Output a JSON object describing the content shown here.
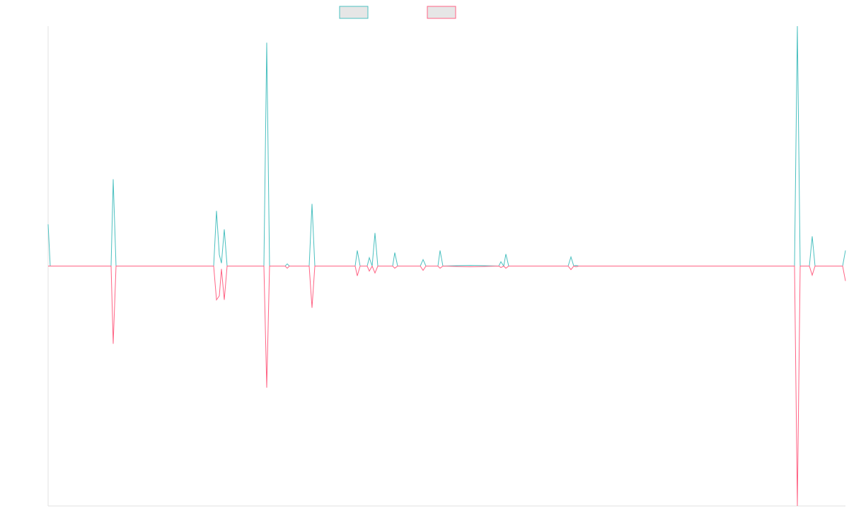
{
  "chart_data": {
    "type": "line",
    "x": [
      0,
      3,
      89,
      92,
      96,
      234,
      238,
      242,
      245,
      249,
      253,
      305,
      309,
      313,
      335,
      338,
      341,
      369,
      373,
      377,
      434,
      437,
      441,
      451,
      454,
      458,
      462,
      466,
      487,
      490,
      494,
      526,
      530,
      534,
      551,
      554,
      558,
      597,
      637,
      640,
      644,
      647,
      651,
      735,
      739,
      743,
      746,
      750,
      1055,
      1059,
      1063,
      1076,
      1080,
      1084,
      1123,
      1127
    ],
    "series": [
      {
        "color": "#4bc0c0",
        "values": [
          17.4,
          0,
          0,
          36.2,
          0,
          0,
          23.0,
          4.7,
          1.2,
          15.3,
          0,
          0,
          93.1,
          0,
          0,
          0.9,
          0,
          0,
          25.9,
          0,
          0,
          6.5,
          0,
          0,
          3.5,
          0,
          13.8,
          0,
          0,
          5.6,
          0,
          0,
          2.7,
          0,
          0,
          6.5,
          0,
          0.3,
          0,
          1.8,
          0,
          5.0,
          0,
          0,
          3.8,
          0,
          0.3,
          0,
          0,
          100,
          0,
          0,
          12.4,
          0,
          0,
          6.5
        ]
      },
      {
        "color": "#ff6384",
        "values": [
          0,
          0,
          0,
          -32.4,
          0,
          0,
          -14.1,
          -12.4,
          -1.2,
          -14.1,
          0,
          0,
          -50.7,
          0,
          0,
          -0.9,
          0,
          0,
          -17.4,
          0,
          0,
          -4.1,
          0,
          0,
          -2.1,
          0,
          -2.9,
          0,
          0,
          -0.9,
          0,
          0,
          -1.8,
          0,
          0,
          -0.9,
          0,
          -0.3,
          0,
          -0.6,
          0,
          -0.9,
          0,
          0,
          -1.5,
          0,
          -0.3,
          0,
          0,
          -100,
          0,
          0,
          -3.8,
          0,
          0,
          -6.2
        ]
      }
    ],
    "xlim": [
      0,
      1127
    ],
    "ylim": [
      -100,
      100
    ]
  }
}
